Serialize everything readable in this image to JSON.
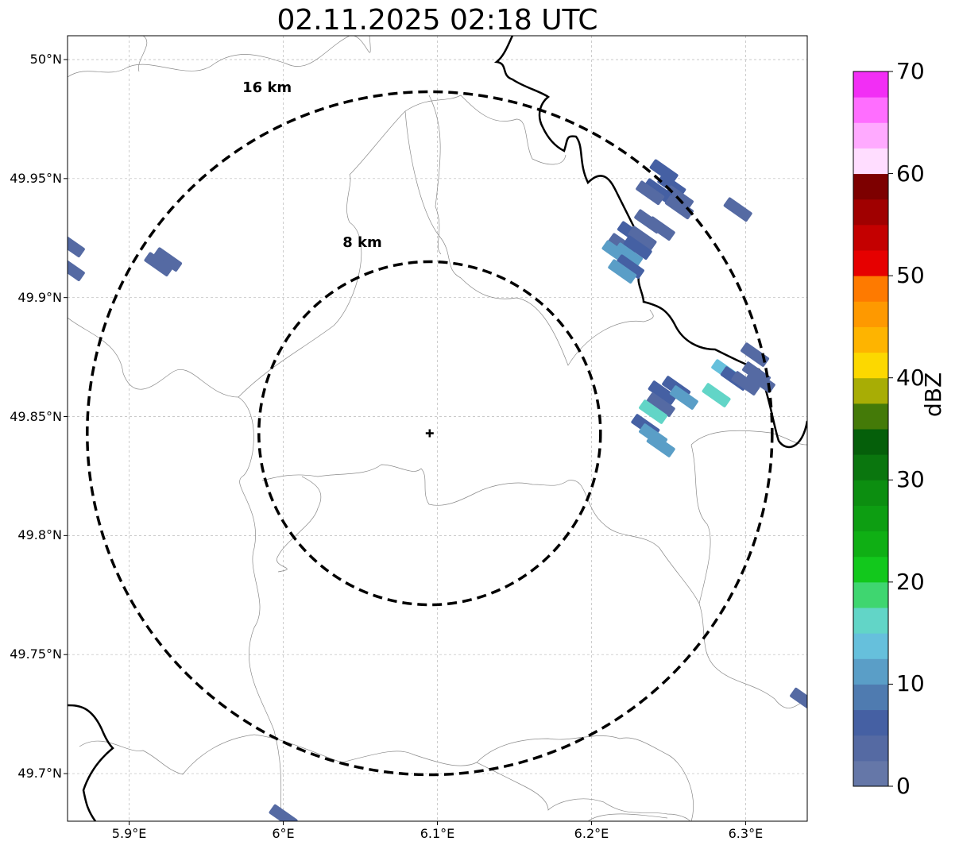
{
  "title": "02.11.2025 02:18 UTC",
  "map": {
    "lon_range": [
      5.86,
      6.34
    ],
    "lat_range": [
      49.68,
      50.01
    ],
    "radar_center": {
      "lon": 6.095,
      "lat": 49.843
    },
    "range_rings": [
      {
        "label": "8 km",
        "label_lon": 6.055,
        "label_lat": 49.923
      },
      {
        "label": "16 km",
        "label_lon": 5.99,
        "label_lat": 49.988
      }
    ],
    "lat_ticks": [
      {
        "value": 50.0,
        "label": "50°N"
      },
      {
        "value": 49.95,
        "label": "49.95°N"
      },
      {
        "value": 49.9,
        "label": "49.9°N"
      },
      {
        "value": 49.85,
        "label": "49.85°N"
      },
      {
        "value": 49.8,
        "label": "49.8°N"
      },
      {
        "value": 49.75,
        "label": "49.75°N"
      },
      {
        "value": 49.7,
        "label": "49.7°N"
      }
    ],
    "lon_ticks": [
      {
        "value": 5.9,
        "label": "5.9°E"
      },
      {
        "value": 6.0,
        "label": "6°E"
      },
      {
        "value": 6.1,
        "label": "6.1°E"
      },
      {
        "value": 6.2,
        "label": "6.2°E"
      },
      {
        "value": 6.3,
        "label": "6.3°E"
      }
    ],
    "grid": true,
    "echoes": [
      {
        "lon": 5.862,
        "lat": 49.922,
        "dbz": 4
      },
      {
        "lon": 5.862,
        "lat": 49.912,
        "dbz": 3
      },
      {
        "lon": 5.925,
        "lat": 49.916,
        "dbz": 4
      },
      {
        "lon": 5.919,
        "lat": 49.914,
        "dbz": 3
      },
      {
        "lon": 6.247,
        "lat": 49.953,
        "dbz": 6
      },
      {
        "lon": 6.252,
        "lat": 49.947,
        "dbz": 5
      },
      {
        "lon": 6.257,
        "lat": 49.942,
        "dbz": 4
      },
      {
        "lon": 6.243,
        "lat": 49.945,
        "dbz": 7
      },
      {
        "lon": 6.238,
        "lat": 49.944,
        "dbz": 3
      },
      {
        "lon": 6.257,
        "lat": 49.938,
        "dbz": 3
      },
      {
        "lon": 6.237,
        "lat": 49.932,
        "dbz": 3
      },
      {
        "lon": 6.245,
        "lat": 49.929,
        "dbz": 3
      },
      {
        "lon": 6.295,
        "lat": 49.937,
        "dbz": 3
      },
      {
        "lon": 6.226,
        "lat": 49.927,
        "dbz": 5
      },
      {
        "lon": 6.233,
        "lat": 49.925,
        "dbz": 3
      },
      {
        "lon": 6.22,
        "lat": 49.922,
        "dbz": 4
      },
      {
        "lon": 6.216,
        "lat": 49.919,
        "dbz": 11
      },
      {
        "lon": 6.224,
        "lat": 49.918,
        "dbz": 12
      },
      {
        "lon": 6.23,
        "lat": 49.921,
        "dbz": 5
      },
      {
        "lon": 6.225,
        "lat": 49.913,
        "dbz": 6
      },
      {
        "lon": 6.22,
        "lat": 49.911,
        "dbz": 10
      },
      {
        "lon": 6.306,
        "lat": 49.876,
        "dbz": 3
      },
      {
        "lon": 6.287,
        "lat": 49.869,
        "dbz": 14
      },
      {
        "lon": 6.293,
        "lat": 49.866,
        "dbz": 5
      },
      {
        "lon": 6.3,
        "lat": 49.864,
        "dbz": 4
      },
      {
        "lon": 6.307,
        "lat": 49.868,
        "dbz": 3
      },
      {
        "lon": 6.31,
        "lat": 49.865,
        "dbz": 4
      },
      {
        "lon": 6.281,
        "lat": 49.859,
        "dbz": 16
      },
      {
        "lon": 6.246,
        "lat": 49.86,
        "dbz": 7
      },
      {
        "lon": 6.255,
        "lat": 49.862,
        "dbz": 5
      },
      {
        "lon": 6.26,
        "lat": 49.858,
        "dbz": 12
      },
      {
        "lon": 6.245,
        "lat": 49.855,
        "dbz": 4
      },
      {
        "lon": 6.24,
        "lat": 49.852,
        "dbz": 15
      },
      {
        "lon": 6.235,
        "lat": 49.846,
        "dbz": 7
      },
      {
        "lon": 6.24,
        "lat": 49.842,
        "dbz": 11
      },
      {
        "lon": 6.245,
        "lat": 49.838,
        "dbz": 12
      },
      {
        "lon": 6.338,
        "lat": 49.731,
        "dbz": 4
      },
      {
        "lon": 6.0,
        "lat": 49.682,
        "dbz": 3
      }
    ]
  },
  "colorbar": {
    "label": "dBZ",
    "min": 0,
    "max": 70,
    "step": 2.5,
    "colors": [
      "#6577a8",
      "#556aa3",
      "#4560a3",
      "#4f7bb0",
      "#5a9ec7",
      "#66c0dc",
      "#62d5c7",
      "#3fd670",
      "#12c81c",
      "#0faf14",
      "#0d9e12",
      "#0c8e10",
      "#0a760e",
      "#055f0a",
      "#447a08",
      "#a8ad05",
      "#fcd800",
      "#feb400",
      "#fe9900",
      "#fe7a00",
      "#e60000",
      "#c40000",
      "#a00000",
      "#7d0000",
      "#ffddff",
      "#ffaaff",
      "#ff6eff",
      "#f22ef5"
    ],
    "ticks": [
      {
        "value": 0,
        "label": "0"
      },
      {
        "value": 10,
        "label": "10"
      },
      {
        "value": 20,
        "label": "20"
      },
      {
        "value": 30,
        "label": "30"
      },
      {
        "value": 40,
        "label": "40"
      },
      {
        "value": 50,
        "label": "50"
      },
      {
        "value": 60,
        "label": "60"
      },
      {
        "value": 70,
        "label": "70"
      }
    ]
  }
}
